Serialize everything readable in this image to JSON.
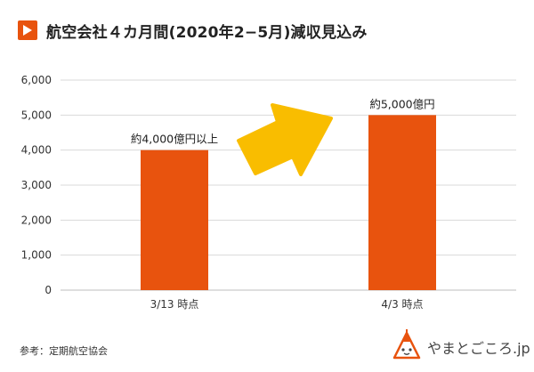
{
  "title": "航空会社４カ月間(2020年2−5月)減収見込み",
  "source": "参考：定期航空協会",
  "logo_text": "やまとごころ.jp",
  "colors": {
    "accent": "#e8530e",
    "bar": "#e8530e",
    "arrow": "#f9bd00",
    "grid": "#d9d9d9"
  },
  "icons": {
    "title": "play-icon",
    "logo": "mountain-mascot-icon"
  },
  "chart_data": {
    "type": "bar",
    "title": "航空会社４カ月間(2020年2−5月)減収見込み",
    "categories": [
      "3/13 時点",
      "4/3 時点"
    ],
    "values": [
      4000,
      5000
    ],
    "data_labels": [
      "約4,000億円以上",
      "約5,000億円"
    ],
    "ylim": [
      0,
      6000
    ],
    "yticks": [
      0,
      1000,
      2000,
      3000,
      4000,
      5000,
      6000
    ],
    "ytick_labels": [
      "0",
      "1,000",
      "2,000",
      "3,000",
      "4,000",
      "5,000",
      "6,000"
    ],
    "grid": true,
    "annotation": "upward-arrow"
  }
}
